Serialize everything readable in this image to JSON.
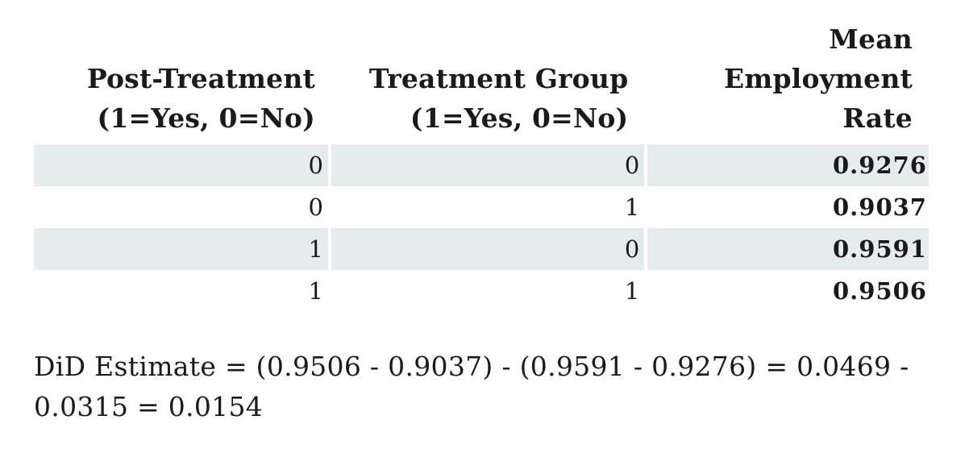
{
  "table": {
    "headers": [
      [
        "Post-Treatment",
        "(1=Yes, 0=No)"
      ],
      [
        "Treatment Group",
        "(1=Yes, 0=No)"
      ],
      [
        "Mean",
        "Employment",
        "Rate"
      ]
    ],
    "rows": [
      [
        "0",
        "0",
        "0.9276"
      ],
      [
        "0",
        "1",
        "0.9037"
      ],
      [
        "1",
        "0",
        "0.9591"
      ],
      [
        "1",
        "1",
        "0.9506"
      ]
    ]
  },
  "estimate": {
    "text": "DiD Estimate = (0.9506 - 0.9037) - (0.9591 - 0.9276) = 0.0469 - 0.0315 = 0.0154"
  },
  "colors": {
    "shaded_row": "#e5ecee",
    "text": "#1a1a1a"
  }
}
